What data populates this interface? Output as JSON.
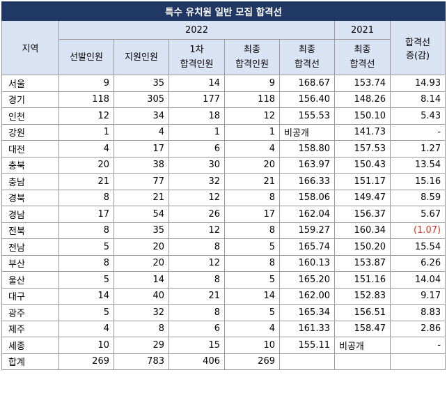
{
  "title": "특수 유치원 일반 모집 합격선",
  "headers": {
    "region": "지역",
    "year_2022": "2022",
    "year_2021": "2021",
    "change": [
      "합격선",
      "증(감)"
    ],
    "sub_2022": [
      [
        "선발인원"
      ],
      [
        "지원인원"
      ],
      [
        "1차",
        "합격인원"
      ],
      [
        "최종",
        "합격인원"
      ],
      [
        "최종",
        "합격선"
      ]
    ],
    "sub_2021": [
      "최종",
      "합격선"
    ]
  },
  "rows": [
    {
      "region": "서울",
      "selected": "9",
      "applicants": "35",
      "first_pass": "14",
      "final_pass": "9",
      "cutoff_2022": "168.67",
      "cutoff_2021": "153.74",
      "change": "14.93"
    },
    {
      "region": "경기",
      "selected": "118",
      "applicants": "305",
      "first_pass": "177",
      "final_pass": "118",
      "cutoff_2022": "156.40",
      "cutoff_2021": "148.26",
      "change": "8.14"
    },
    {
      "region": "인천",
      "selected": "12",
      "applicants": "34",
      "first_pass": "18",
      "final_pass": "12",
      "cutoff_2022": "155.53",
      "cutoff_2021": "150.10",
      "change": "5.43"
    },
    {
      "region": "강원",
      "selected": "1",
      "applicants": "4",
      "first_pass": "1",
      "final_pass": "1",
      "cutoff_2022": "비공개",
      "cutoff_2021": "141.73",
      "change": "-"
    },
    {
      "region": "대전",
      "selected": "4",
      "applicants": "17",
      "first_pass": "6",
      "final_pass": "4",
      "cutoff_2022": "158.80",
      "cutoff_2021": "157.53",
      "change": "1.27"
    },
    {
      "region": "충북",
      "selected": "20",
      "applicants": "38",
      "first_pass": "30",
      "final_pass": "20",
      "cutoff_2022": "163.97",
      "cutoff_2021": "150.43",
      "change": "13.54"
    },
    {
      "region": "충남",
      "selected": "21",
      "applicants": "77",
      "first_pass": "32",
      "final_pass": "21",
      "cutoff_2022": "166.33",
      "cutoff_2021": "151.17",
      "change": "15.16"
    },
    {
      "region": "경북",
      "selected": "8",
      "applicants": "21",
      "first_pass": "12",
      "final_pass": "8",
      "cutoff_2022": "158.06",
      "cutoff_2021": "149.47",
      "change": "8.59"
    },
    {
      "region": "경남",
      "selected": "17",
      "applicants": "54",
      "first_pass": "26",
      "final_pass": "17",
      "cutoff_2022": "162.04",
      "cutoff_2021": "156.37",
      "change": "5.67"
    },
    {
      "region": "전북",
      "selected": "8",
      "applicants": "35",
      "first_pass": "12",
      "final_pass": "8",
      "cutoff_2022": "159.27",
      "cutoff_2021": "160.34",
      "change": "(1.07)"
    },
    {
      "region": "전남",
      "selected": "5",
      "applicants": "20",
      "first_pass": "8",
      "final_pass": "5",
      "cutoff_2022": "165.74",
      "cutoff_2021": "150.20",
      "change": "15.54"
    },
    {
      "region": "부산",
      "selected": "8",
      "applicants": "20",
      "first_pass": "12",
      "final_pass": "8",
      "cutoff_2022": "160.13",
      "cutoff_2021": "153.87",
      "change": "6.26"
    },
    {
      "region": "울산",
      "selected": "5",
      "applicants": "14",
      "first_pass": "8",
      "final_pass": "5",
      "cutoff_2022": "165.20",
      "cutoff_2021": "151.16",
      "change": "14.04"
    },
    {
      "region": "대구",
      "selected": "14",
      "applicants": "40",
      "first_pass": "21",
      "final_pass": "14",
      "cutoff_2022": "162.00",
      "cutoff_2021": "152.83",
      "change": "9.17"
    },
    {
      "region": "광주",
      "selected": "5",
      "applicants": "32",
      "first_pass": "8",
      "final_pass": "5",
      "cutoff_2022": "165.34",
      "cutoff_2021": "156.51",
      "change": "8.83"
    },
    {
      "region": "제주",
      "selected": "4",
      "applicants": "8",
      "first_pass": "6",
      "final_pass": "4",
      "cutoff_2022": "161.33",
      "cutoff_2021": "158.47",
      "change": "2.86"
    },
    {
      "region": "세종",
      "selected": "10",
      "applicants": "29",
      "first_pass": "15",
      "final_pass": "10",
      "cutoff_2022": "155.11",
      "cutoff_2021": "비공개",
      "change": "-"
    }
  ],
  "total": {
    "region": "합계",
    "selected": "269",
    "applicants": "783",
    "first_pass": "406",
    "final_pass": "269",
    "cutoff_2022": "",
    "cutoff_2021": "",
    "change": ""
  },
  "colors": {
    "title_bg": "#1f3864",
    "header_bg": "#dae3f3",
    "negative": "#e0301e"
  }
}
